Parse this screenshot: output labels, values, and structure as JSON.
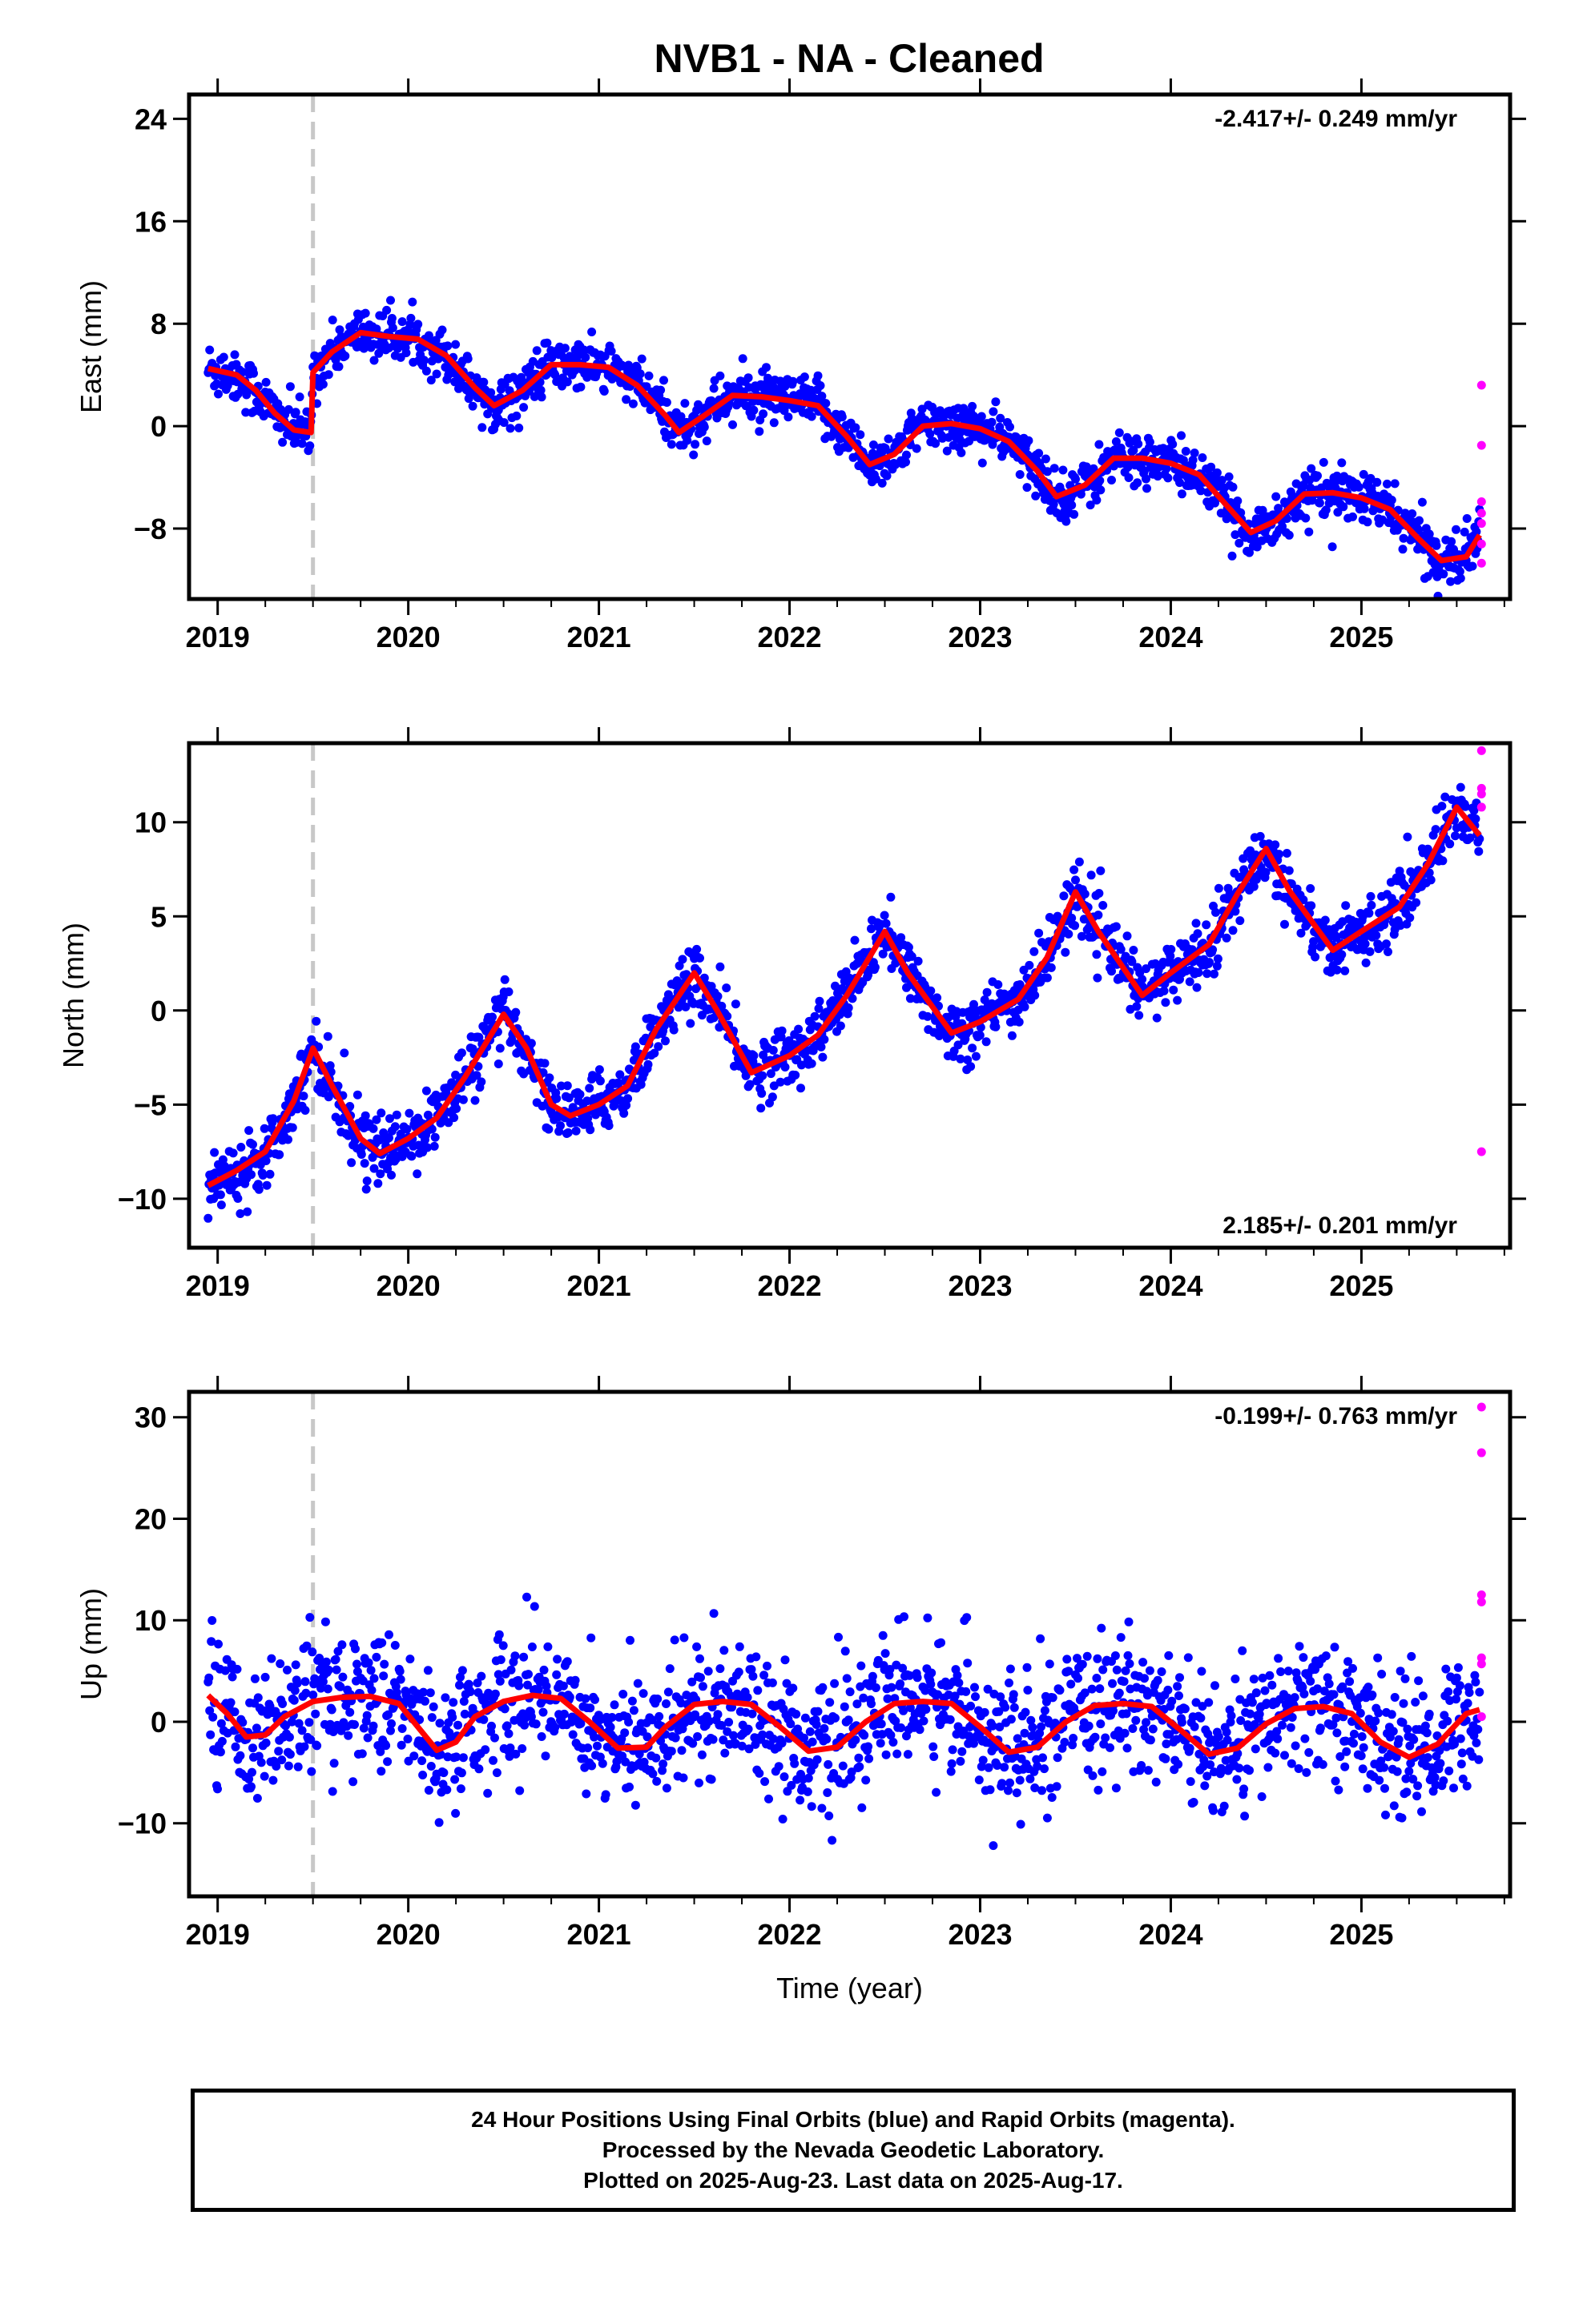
{
  "title": "NVB1  - NA - Cleaned",
  "footer": {
    "line1": "24 Hour Positions Using Final Orbits (blue) and Rapid Orbits (magenta).",
    "line2": "Processed by the Nevada Geodetic Laboratory.",
    "line3": "Plotted on 2025-Aug-23. Last data on 2025-Aug-17."
  },
  "colors": {
    "final_orbits": "#0000ff",
    "rapid_orbits": "#ff00ff",
    "model": "#ff0000",
    "offset_line": "#c8c8c8"
  },
  "chart_data": [
    {
      "type": "scatter",
      "ylabel": "East (mm)",
      "xlabel": "",
      "xlim": [
        2018.85,
        2025.78
      ],
      "ylim": [
        -13.5,
        25.9
      ],
      "xticks": [
        "2019",
        "2020",
        "2021",
        "2022",
        "2023",
        "2024",
        "2025"
      ],
      "yticks": [
        24,
        16,
        8,
        0,
        -8
      ],
      "ytick_labels": [
        "24",
        "16",
        "8",
        "0",
        "−8"
      ],
      "rate_text": "-2.417+/- 0.249 mm/yr",
      "rate_position": "top-right",
      "offset_line_x": 2019.5,
      "trend": -2.417,
      "intercept": 4.5,
      "annual_amp": 2.3,
      "annual_phase": 1.0,
      "step": 4.2,
      "noise": 1.2,
      "model_x": [
        2018.95,
        2019.1,
        2019.2,
        2019.3,
        2019.4,
        2019.49,
        2019.5,
        2019.6,
        2019.75,
        2019.9,
        2020.05,
        2020.2,
        2020.35,
        2020.45,
        2020.6,
        2020.75,
        2020.9,
        2021.05,
        2021.2,
        2021.35,
        2021.42,
        2021.55,
        2021.7,
        2021.85,
        2022.0,
        2022.15,
        2022.3,
        2022.42,
        2022.55,
        2022.7,
        2022.85,
        2023.0,
        2023.15,
        2023.3,
        2023.4,
        2023.55,
        2023.7,
        2023.85,
        2024.0,
        2024.15,
        2024.3,
        2024.42,
        2024.55,
        2024.7,
        2024.85,
        2025.0,
        2025.15,
        2025.3,
        2025.42,
        2025.55,
        2025.62
      ],
      "model_y": [
        4.5,
        4.0,
        2.8,
        1.0,
        -0.3,
        -0.5,
        4.2,
        5.8,
        7.3,
        7.0,
        6.8,
        5.5,
        3.0,
        1.6,
        2.8,
        4.8,
        4.8,
        4.6,
        3.2,
        0.8,
        -0.5,
        0.8,
        2.4,
        2.3,
        2.0,
        1.6,
        -0.8,
        -3.0,
        -2.2,
        0.0,
        0.2,
        -0.2,
        -1.2,
        -3.5,
        -5.5,
        -4.6,
        -2.5,
        -2.5,
        -2.9,
        -3.8,
        -6.3,
        -8.3,
        -7.4,
        -5.3,
        -5.2,
        -5.6,
        -6.5,
        -8.8,
        -10.5,
        -10.2,
        -8.5
      ],
      "rapid_x": [
        2025.63,
        2025.63,
        2025.63,
        2025.63,
        2025.63,
        2025.63,
        2025.63
      ],
      "rapid_y": [
        3.2,
        -1.5,
        -5.9,
        -6.8,
        -7.6,
        -9.2,
        -10.7
      ],
      "series": [
        {
          "name": "Final Orbits",
          "marker": "blue dots"
        },
        {
          "name": "Rapid Orbits",
          "marker": "magenta dots"
        }
      ]
    },
    {
      "type": "scatter",
      "ylabel": "North (mm)",
      "xlabel": "",
      "xlim": [
        2018.85,
        2025.78
      ],
      "ylim": [
        -12.6,
        14.2
      ],
      "xticks": [
        "2019",
        "2020",
        "2021",
        "2022",
        "2023",
        "2024",
        "2025"
      ],
      "yticks": [
        10,
        5,
        0,
        -5,
        -10
      ],
      "ytick_labels": [
        "10",
        "5",
        "0",
        "−5",
        "−10"
      ],
      "rate_text": "2.185+/- 0.201 mm/yr",
      "rate_position": "bottom-right",
      "offset_line_x": 2019.5,
      "trend": 2.185,
      "intercept": -9.3,
      "annual_amp": 3.0,
      "annual_phase": 0.0,
      "step": 0.0,
      "noise": 1.0,
      "model_x": [
        2018.95,
        2019.1,
        2019.25,
        2019.4,
        2019.49,
        2019.5,
        2019.6,
        2019.75,
        2019.85,
        2020.0,
        2020.15,
        2020.3,
        2020.5,
        2020.62,
        2020.75,
        2020.85,
        2021.0,
        2021.15,
        2021.3,
        2021.5,
        2021.62,
        2021.8,
        2022.0,
        2022.15,
        2022.3,
        2022.5,
        2022.62,
        2022.85,
        2023.0,
        2023.2,
        2023.35,
        2023.5,
        2023.62,
        2023.85,
        2024.0,
        2024.2,
        2024.35,
        2024.5,
        2024.62,
        2024.85,
        2025.0,
        2025.2,
        2025.35,
        2025.5,
        2025.62
      ],
      "model_y": [
        -9.3,
        -8.5,
        -7.5,
        -4.8,
        -2.3,
        -2.0,
        -4.0,
        -6.8,
        -7.6,
        -6.8,
        -5.7,
        -3.5,
        -0.2,
        -2.0,
        -5.0,
        -5.6,
        -5.0,
        -4.0,
        -1.0,
        2.0,
        0.0,
        -3.3,
        -2.4,
        -1.3,
        0.8,
        4.2,
        2.0,
        -1.2,
        -0.6,
        0.6,
        2.8,
        6.3,
        4.2,
        0.8,
        2.0,
        3.5,
        6.2,
        8.6,
        6.4,
        3.2,
        4.2,
        5.5,
        7.8,
        10.8,
        9.3
      ],
      "rapid_x": [
        2025.63,
        2025.63,
        2025.63,
        2025.63,
        2025.63
      ],
      "rapid_y": [
        13.8,
        11.8,
        11.5,
        10.8,
        -7.5
      ],
      "series": [
        {
          "name": "Final Orbits",
          "marker": "blue dots"
        },
        {
          "name": "Rapid Orbits",
          "marker": "magenta dots"
        }
      ]
    },
    {
      "type": "scatter",
      "ylabel": "Up (mm)",
      "xlabel": "Time (year)",
      "xlim": [
        2018.85,
        2025.78
      ],
      "ylim": [
        -17.2,
        32.5
      ],
      "xticks": [
        "2019",
        "2020",
        "2021",
        "2022",
        "2023",
        "2024",
        "2025"
      ],
      "yticks": [
        30,
        20,
        10,
        0,
        -10
      ],
      "ytick_labels": [
        "30",
        "20",
        "10",
        "0",
        "−10"
      ],
      "rate_text": "-0.199+/- 0.763 mm/yr",
      "rate_position": "top-right",
      "offset_line_x": 2019.5,
      "trend": -0.199,
      "intercept": 0.0,
      "annual_amp": 2.8,
      "annual_phase": 0.7,
      "step": 0.0,
      "noise": 4.0,
      "model_x": [
        2018.95,
        2019.05,
        2019.15,
        2019.25,
        2019.35,
        2019.5,
        2019.65,
        2019.8,
        2019.95,
        2020.05,
        2020.15,
        2020.25,
        2020.35,
        2020.5,
        2020.65,
        2020.8,
        2020.95,
        2021.1,
        2021.25,
        2021.35,
        2021.5,
        2021.65,
        2021.8,
        2021.95,
        2022.1,
        2022.25,
        2022.4,
        2022.55,
        2022.7,
        2022.85,
        2023.0,
        2023.15,
        2023.3,
        2023.45,
        2023.6,
        2023.75,
        2023.9,
        2024.05,
        2024.2,
        2024.35,
        2024.5,
        2024.65,
        2024.8,
        2024.95,
        2025.1,
        2025.25,
        2025.4,
        2025.55,
        2025.62
      ],
      "model_y": [
        2.6,
        0.8,
        -1.5,
        -1.3,
        0.5,
        2.0,
        2.4,
        2.5,
        1.8,
        -0.5,
        -2.8,
        -2.0,
        0.5,
        2.0,
        2.6,
        2.3,
        0.0,
        -2.6,
        -2.5,
        -0.5,
        1.7,
        2.0,
        1.7,
        -0.5,
        -2.9,
        -2.5,
        0.0,
        1.8,
        2.0,
        1.8,
        -0.5,
        -3.0,
        -2.5,
        0.0,
        1.6,
        1.8,
        1.5,
        -0.8,
        -3.2,
        -2.6,
        -0.2,
        1.3,
        1.5,
        0.8,
        -2.0,
        -3.5,
        -2.2,
        0.8,
        1.2
      ],
      "rapid_x": [
        2025.63,
        2025.63,
        2025.63,
        2025.63,
        2025.63,
        2025.63,
        2025.63
      ],
      "rapid_y": [
        31.0,
        26.5,
        12.5,
        11.8,
        6.3,
        5.7,
        0.5
      ],
      "series": [
        {
          "name": "Final Orbits",
          "marker": "blue dots"
        },
        {
          "name": "Rapid Orbits",
          "marker": "magenta dots"
        }
      ]
    }
  ]
}
